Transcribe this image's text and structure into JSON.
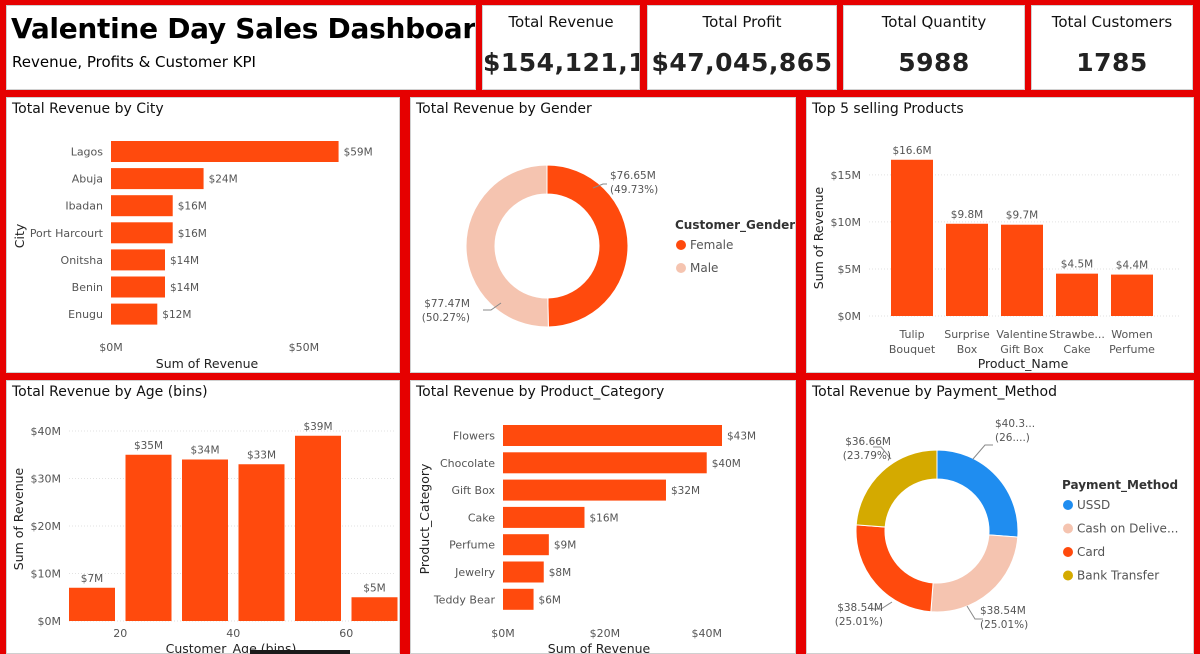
{
  "header": {
    "title": "Valentine Day Sales Dashboard",
    "subtitle": "Revenue, Profits & Customer KPI"
  },
  "kpis": [
    {
      "title": "Total Revenue",
      "value": "$154,121,1..."
    },
    {
      "title": "Total Profit",
      "value": "$47,045,865"
    },
    {
      "title": "Total Quantity",
      "value": "5988"
    },
    {
      "title": "Total Customers",
      "value": "1785"
    }
  ],
  "colors": {
    "primary": "#ff4a0d",
    "light": "#f5c4b0",
    "usd": "#1f8df0",
    "cod": "#f5c4b0",
    "card": "#ff4a0d",
    "bank": "#d4aa00",
    "frame": "#e60000"
  },
  "chart_data": [
    {
      "id": "city",
      "type": "bar",
      "orientation": "horizontal",
      "title": "Total Revenue by City",
      "xlabel": "Sum of Revenue",
      "ylabel": "City",
      "categories": [
        "Lagos",
        "Abuja",
        "Ibadan",
        "Port Harcourt",
        "Onitsha",
        "Benin",
        "Enugu"
      ],
      "values": [
        59,
        24,
        16,
        16,
        14,
        14,
        12
      ],
      "labels": [
        "$59M",
        "$24M",
        "$16M",
        "$16M",
        "$14M",
        "$14M",
        "$12M"
      ],
      "xticks": [
        {
          "v": 0,
          "label": "$0M"
        },
        {
          "v": 50,
          "label": "$50M"
        }
      ],
      "xlim": [
        0,
        70
      ]
    },
    {
      "id": "gender",
      "type": "pie",
      "donut": true,
      "title": "Total Revenue by Gender",
      "legend_title": "Customer_Gender",
      "slices": [
        {
          "name": "Female",
          "value": 76.65,
          "label": "$76.65M",
          "pct": "(49.73%)",
          "color": "#ff4a0d"
        },
        {
          "name": "Male",
          "value": 77.47,
          "label": "$77.47M",
          "pct": "(50.27%)",
          "color": "#f5c4b0"
        }
      ]
    },
    {
      "id": "products",
      "type": "bar",
      "orientation": "vertical",
      "title": "Top 5 selling Products",
      "xlabel": "Product_Name",
      "ylabel": "Sum of Revenue",
      "categories": [
        [
          "Tulip",
          "Bouquet"
        ],
        [
          "Surprise",
          "Box"
        ],
        [
          "Valentine",
          "Gift Box"
        ],
        [
          "Strawbe...",
          "Cake"
        ],
        [
          "Women",
          "Perfume"
        ]
      ],
      "values": [
        16.6,
        9.8,
        9.7,
        4.5,
        4.4
      ],
      "labels": [
        "$16.6M",
        "$9.8M",
        "$9.7M",
        "$4.5M",
        "$4.4M"
      ],
      "yticks": [
        {
          "v": 0,
          "label": "$0M"
        },
        {
          "v": 5,
          "label": "$5M"
        },
        {
          "v": 10,
          "label": "$10M"
        },
        {
          "v": 15,
          "label": "$15M"
        }
      ],
      "ylim": [
        0,
        17
      ]
    },
    {
      "id": "age",
      "type": "bar",
      "orientation": "vertical",
      "title": "Total Revenue by Age (bins)",
      "xlabel": "Customer_Age (bins)",
      "ylabel": "Sum of Revenue",
      "x": [
        10,
        20,
        30,
        40,
        50,
        60
      ],
      "values": [
        7,
        35,
        34,
        33,
        39,
        5
      ],
      "labels": [
        "$7M",
        "$35M",
        "$34M",
        "$33M",
        "$39M",
        "$5M"
      ],
      "xticks": [
        {
          "v": 20,
          "label": "20"
        },
        {
          "v": 40,
          "label": "40"
        },
        {
          "v": 60,
          "label": "60"
        }
      ],
      "yticks": [
        {
          "v": 0,
          "label": "$0M"
        },
        {
          "v": 10,
          "label": "$10M"
        },
        {
          "v": 20,
          "label": "$20M"
        },
        {
          "v": 30,
          "label": "$30M"
        },
        {
          "v": 40,
          "label": "$40M"
        }
      ],
      "ylim": [
        0,
        40
      ]
    },
    {
      "id": "category",
      "type": "bar",
      "orientation": "horizontal",
      "title": "Total Revenue by Product_Category",
      "xlabel": "Sum of Revenue",
      "ylabel": "Product_Category",
      "categories": [
        "Flowers",
        "Chocolate",
        "Gift Box",
        "Cake",
        "Perfume",
        "Jewelry",
        "Teddy Bear"
      ],
      "values": [
        43,
        40,
        32,
        16,
        9,
        8,
        6
      ],
      "labels": [
        "$43M",
        "$40M",
        "$32M",
        "$16M",
        "$9M",
        "$8M",
        "$6M"
      ],
      "xticks": [
        {
          "v": 0,
          "label": "$0M"
        },
        {
          "v": 20,
          "label": "$20M"
        },
        {
          "v": 40,
          "label": "$40M"
        }
      ],
      "xlim": [
        0,
        43
      ]
    },
    {
      "id": "payment",
      "type": "pie",
      "donut": true,
      "title": "Total Revenue by Payment_Method",
      "legend_title": "Payment_Method",
      "slices": [
        {
          "name": "USSD",
          "value": 40.38,
          "label": "$40.3...",
          "pct": "(26....)",
          "color": "#1f8df0"
        },
        {
          "name": "Cash on Delive...",
          "value": 38.54,
          "label": "$38.54M",
          "pct": "(25.01%)",
          "color": "#f5c4b0"
        },
        {
          "name": "Card",
          "value": 38.54,
          "label": "$38.54M",
          "pct": "(25.01%)",
          "color": "#ff4a0d"
        },
        {
          "name": "Bank Transfer",
          "value": 36.66,
          "label": "$36.66M",
          "pct": "(23.79%)",
          "color": "#d4aa00"
        }
      ]
    }
  ]
}
